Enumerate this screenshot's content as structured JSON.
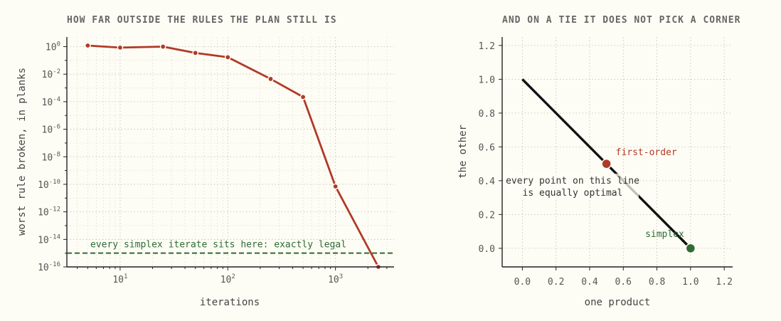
{
  "colors": {
    "background": "#fefdf5",
    "convergence": "#b03a28",
    "simplex": "#2e6b35",
    "tie_line": "#111111",
    "first_order": "#b03a28"
  },
  "chart_data": [
    {
      "type": "line",
      "title": "HOW FAR OUTSIDE THE RULES THE PLAN STILL IS",
      "xlabel": "iterations",
      "ylabel": "worst rule broken, in planks",
      "xscale": "log",
      "yscale": "log",
      "xlim": [
        3.2,
        3500
      ],
      "ylim": [
        1e-16,
        5
      ],
      "xticks": [
        {
          "value": 10,
          "base": "10",
          "exp": "1"
        },
        {
          "value": 100,
          "base": "10",
          "exp": "2"
        },
        {
          "value": 1000,
          "base": "10",
          "exp": "3"
        }
      ],
      "yticks": [
        {
          "value": 1,
          "base": "10",
          "exp": "0"
        },
        {
          "value": 0.01,
          "base": "10",
          "exp": "-2"
        },
        {
          "value": 0.0001,
          "base": "10",
          "exp": "-4"
        },
        {
          "value": 1e-06,
          "base": "10",
          "exp": "-6"
        },
        {
          "value": 1e-08,
          "base": "10",
          "exp": "-8"
        },
        {
          "value": 1e-10,
          "base": "10",
          "exp": "-10"
        },
        {
          "value": 1e-12,
          "base": "10",
          "exp": "-12"
        },
        {
          "value": 1e-14,
          "base": "10",
          "exp": "-14"
        },
        {
          "value": 1e-16,
          "base": "10",
          "exp": "-16"
        }
      ],
      "grid": true,
      "series": [
        {
          "x": [
            5,
            10,
            25,
            50,
            100,
            250,
            500,
            1000,
            2500
          ],
          "y": [
            1.2,
            0.85,
            1.0,
            0.35,
            0.17,
            0.0045,
            0.00022,
            7e-11,
            1e-16
          ]
        }
      ],
      "reference_line": {
        "y": 1e-15,
        "label": "every simplex iterate sits here: exactly legal"
      }
    },
    {
      "type": "line",
      "title": "AND ON A TIE IT DOES NOT PICK A CORNER",
      "xlabel": "one product",
      "ylabel": "the other",
      "xlim": [
        -0.12,
        1.25
      ],
      "ylim": [
        -0.11,
        1.25
      ],
      "xticks": [
        "0.0",
        "0.2",
        "0.4",
        "0.6",
        "0.8",
        "1.0",
        "1.2"
      ],
      "yticks": [
        "0.0",
        "0.2",
        "0.4",
        "0.6",
        "0.8",
        "1.0",
        "1.2"
      ],
      "grid": true,
      "tie_line": {
        "x": [
          0,
          1
        ],
        "y": [
          1,
          0
        ]
      },
      "points": [
        {
          "name": "first-order",
          "x": 0.5,
          "y": 0.5
        },
        {
          "name": "simplex",
          "x": 1.0,
          "y": 0.0
        }
      ],
      "annotation": [
        "every point on this line",
        "is equally optimal"
      ]
    }
  ]
}
